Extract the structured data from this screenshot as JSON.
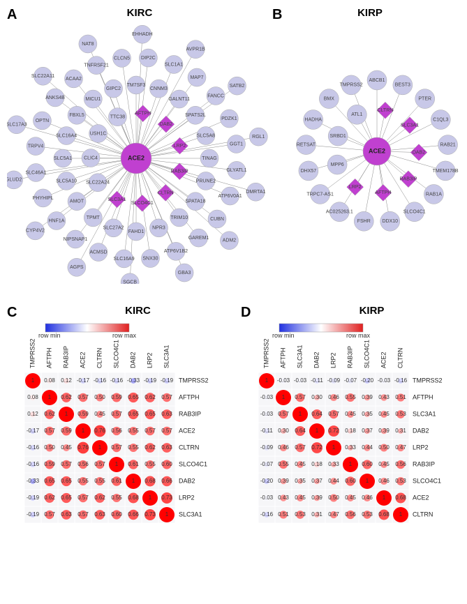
{
  "panels": {
    "A": {
      "label": "A",
      "title": "KIRC"
    },
    "B": {
      "label": "B",
      "title": "KIRP"
    },
    "C": {
      "label": "C",
      "title": "KIRC"
    },
    "D": {
      "label": "D",
      "title": "KIRP"
    }
  },
  "colors": {
    "node_fill": "#c8c8e8",
    "diamond_fill": "#c040d0",
    "hub_fill": "#c040d0",
    "edge": "#888888",
    "bg": "#ffffff"
  },
  "netA": {
    "hub": "ACE2",
    "diamonds": [
      "AFTPH",
      "DAB2",
      "LRP2",
      "RAB3IP",
      "CLTRN",
      "SLCO4C1",
      "SLC3A1"
    ],
    "nodes": [
      "SLC22A24",
      "CLIC4",
      "USH1C",
      "TTC38",
      "TM7SF3",
      "CNNM3",
      "GALNT11",
      "SPATS2L",
      "SLC5A8",
      "TINAG",
      "PRUNE2",
      "SPATA18",
      "TRIM10",
      "NPR3",
      "FAHD1",
      "SLC27A2",
      "TPMT",
      "AMOT",
      "SLC5A10",
      "SLC5A1",
      "SLC16A4",
      "FBXL5",
      "MICU1",
      "GIPC2",
      "DIP2C",
      "SLC1A1",
      "MAP7",
      "FANCC",
      "PDZK1",
      "GGT1",
      "GLYATL1",
      "ATP6V0A1",
      "CUBN",
      "GAREM1",
      "ATP6V1B2",
      "SNX30",
      "SLC16A9",
      "ACMSD",
      "NIPSNAP1",
      "HNF1A",
      "PHYHIPL",
      "SLC46A1",
      "TRPV4",
      "OPTN",
      "ANKS4B",
      "ACAA2",
      "TNFRSF21",
      "CLCN5",
      "EHHADH",
      "AVPR1B",
      "SATB2",
      "RGL1",
      "DMRTA1",
      "ADM2",
      "GBA3",
      "SGCB",
      "AGPS",
      "CYP4V2",
      "GLUD2",
      "SLC17A3",
      "SLC22A11",
      "NAT8"
    ]
  },
  "netB": {
    "hub": "ACE2",
    "diamonds": [
      "CLTRN",
      "SLC3A1",
      "DAB2",
      "RAB3IP",
      "AFTPH",
      "LRP2"
    ],
    "nodes": [
      "MPP6",
      "SRBD1",
      "ATL1",
      "ABCB1",
      "BEST3",
      "PTER",
      "C1QL3",
      "RAB21",
      "TMEM178B",
      "RAB1A",
      "SLCO4C1",
      "DDX10",
      "FSHR",
      "AC025263.1",
      "TRPC7-AS1",
      "DHX57",
      "RETSAT",
      "HADHA",
      "BMX",
      "TMPRSS2"
    ]
  },
  "heatmapC": {
    "labels": [
      "TMPRSS2",
      "AFTPH",
      "RAB3IP",
      "ACE2",
      "CLTRN",
      "SLCO4C1",
      "DAB2",
      "LRP2",
      "SLC3A1"
    ],
    "matrix": [
      [
        1,
        0.08,
        0.12,
        -0.17,
        -0.16,
        -0.16,
        -0.33,
        -0.19,
        -0.19
      ],
      [
        0.08,
        1,
        0.62,
        0.57,
        0.5,
        0.59,
        0.65,
        0.62,
        0.57
      ],
      [
        0.12,
        0.62,
        1,
        0.59,
        0.45,
        0.57,
        0.65,
        0.65,
        0.63
      ],
      [
        -0.17,
        0.57,
        0.59,
        1,
        0.76,
        0.56,
        0.55,
        0.57,
        0.57
      ],
      [
        -0.16,
        0.5,
        0.45,
        0.76,
        1,
        0.57,
        0.55,
        0.62,
        0.63
      ],
      [
        -0.16,
        0.59,
        0.57,
        0.56,
        0.57,
        1,
        0.61,
        0.55,
        0.6
      ],
      [
        -0.33,
        0.65,
        0.65,
        0.55,
        0.55,
        0.61,
        1,
        0.68,
        0.66
      ],
      [
        -0.19,
        0.62,
        0.65,
        0.57,
        0.62,
        0.55,
        0.68,
        1,
        0.73
      ],
      [
        -0.19,
        0.57,
        0.63,
        0.57,
        0.63,
        0.6,
        0.66,
        0.73,
        1
      ]
    ]
  },
  "heatmapD": {
    "labels": [
      "TMPRSS2",
      "AFTPH",
      "SLC3A1",
      "DAB2",
      "LRP2",
      "RAB3IP",
      "SLCO4C1",
      "ACE2",
      "CLTRN"
    ],
    "matrix": [
      [
        1,
        -0.03,
        -0.03,
        -0.11,
        -0.09,
        -0.07,
        -0.2,
        -0.03,
        -0.16
      ],
      [
        -0.03,
        1,
        0.57,
        0.3,
        0.46,
        0.55,
        0.39,
        0.43,
        0.51
      ],
      [
        -0.03,
        0.57,
        1,
        0.64,
        0.57,
        0.45,
        0.35,
        0.45,
        0.53
      ],
      [
        -0.11,
        0.3,
        0.64,
        1,
        0.72,
        0.18,
        0.37,
        0.39,
        0.31
      ],
      [
        -0.09,
        0.46,
        0.57,
        0.72,
        1,
        0.33,
        0.44,
        0.5,
        0.47
      ],
      [
        -0.07,
        0.55,
        0.45,
        0.18,
        0.33,
        1,
        0.6,
        0.45,
        0.56
      ],
      [
        -0.2,
        0.39,
        0.35,
        0.37,
        0.44,
        0.6,
        1,
        0.46,
        0.53
      ],
      [
        -0.03,
        0.43,
        0.45,
        0.39,
        0.5,
        0.45,
        0.46,
        1,
        0.68
      ],
      [
        -0.16,
        0.51,
        0.53,
        0.31,
        0.47,
        0.56,
        0.53,
        0.68,
        1
      ]
    ]
  },
  "colorbar": {
    "min_label": "row min",
    "max_label": "row max"
  }
}
